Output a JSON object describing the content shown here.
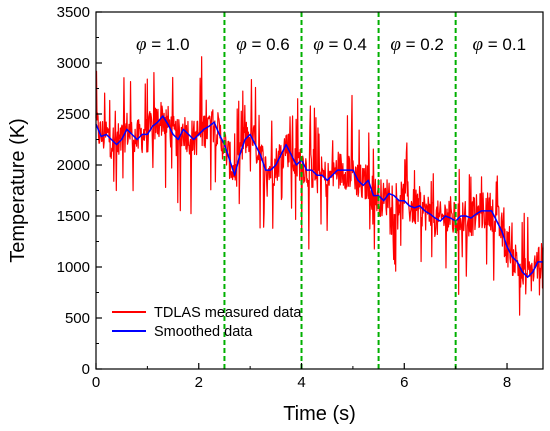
{
  "chart_data": {
    "type": "line",
    "xlabel": "Time (s)",
    "ylabel": "Temperature (K)",
    "xlim": [
      0,
      8.7
    ],
    "ylim": [
      0,
      3500
    ],
    "xticks": [
      "0",
      "2",
      "4",
      "6",
      "8"
    ],
    "yticks": [
      "0",
      "500",
      "1000",
      "1500",
      "2000",
      "2500",
      "3000",
      "3500"
    ],
    "grid": false,
    "legend_position": "bottom-left",
    "vertical_lines_x": [
      2.5,
      4.0,
      5.5,
      7.0
    ],
    "regions": [
      {
        "symbol": "φ",
        "label": "= 1.0",
        "x": 1.3
      },
      {
        "symbol": "φ",
        "label": "= 0.6",
        "x": 3.25
      },
      {
        "symbol": "φ",
        "label": "= 0.4",
        "x": 4.75
      },
      {
        "symbol": "φ",
        "label": "= 0.2",
        "x": 6.25
      },
      {
        "symbol": "φ",
        "label": "= 0.1",
        "x": 7.85
      }
    ],
    "series": [
      {
        "name": "TDLAS measured data",
        "color": "#ff0000",
        "noise_amplitude": 420,
        "x": [
          0,
          0.1,
          0.2,
          0.3,
          0.4,
          0.5,
          0.6,
          0.7,
          0.8,
          0.9,
          1.0,
          1.1,
          1.2,
          1.3,
          1.4,
          1.5,
          1.6,
          1.7,
          1.8,
          1.9,
          2.0,
          2.1,
          2.2,
          2.3,
          2.4,
          2.5,
          2.6,
          2.7,
          2.8,
          2.9,
          3.0,
          3.1,
          3.2,
          3.3,
          3.4,
          3.5,
          3.6,
          3.7,
          3.8,
          3.9,
          4.0,
          4.1,
          4.2,
          4.3,
          4.4,
          4.5,
          4.6,
          4.7,
          4.8,
          4.9,
          5.0,
          5.1,
          5.2,
          5.3,
          5.4,
          5.5,
          5.6,
          5.7,
          5.8,
          5.9,
          6.0,
          6.1,
          6.2,
          6.3,
          6.4,
          6.5,
          6.6,
          6.7,
          6.8,
          6.9,
          7.0,
          7.1,
          7.2,
          7.3,
          7.4,
          7.5,
          7.6,
          7.7,
          7.8,
          7.9,
          8.0,
          8.1,
          8.2,
          8.3,
          8.4,
          8.5,
          8.6,
          8.7
        ],
        "values": [
          2400,
          2280,
          2300,
          2250,
          2200,
          2250,
          2350,
          2300,
          2250,
          2300,
          2300,
          2380,
          2420,
          2480,
          2400,
          2300,
          2250,
          2350,
          2300,
          2250,
          2300,
          2350,
          2380,
          2420,
          2300,
          2200,
          2050,
          1900,
          2100,
          2250,
          2300,
          2200,
          2100,
          1950,
          1950,
          2000,
          2100,
          2200,
          2100,
          2000,
          2050,
          1950,
          1950,
          1900,
          1900,
          1850,
          1900,
          1950,
          1950,
          1950,
          1950,
          1850,
          1800,
          1850,
          1700,
          1700,
          1650,
          1720,
          1700,
          1650,
          1650,
          1600,
          1580,
          1600,
          1550,
          1520,
          1480,
          1450,
          1500,
          1480,
          1450,
          1500,
          1500,
          1480,
          1520,
          1550,
          1550,
          1550,
          1450,
          1350,
          1200,
          1100,
          1050,
          950,
          900,
          950,
          1050,
          1050
        ]
      },
      {
        "name": "Smoothed data",
        "color": "#0000ff",
        "x": [
          0,
          0.1,
          0.2,
          0.3,
          0.4,
          0.5,
          0.6,
          0.7,
          0.8,
          0.9,
          1.0,
          1.1,
          1.2,
          1.3,
          1.4,
          1.5,
          1.6,
          1.7,
          1.8,
          1.9,
          2.0,
          2.1,
          2.2,
          2.3,
          2.4,
          2.5,
          2.6,
          2.7,
          2.8,
          2.9,
          3.0,
          3.1,
          3.2,
          3.3,
          3.4,
          3.5,
          3.6,
          3.7,
          3.8,
          3.9,
          4.0,
          4.1,
          4.2,
          4.3,
          4.4,
          4.5,
          4.6,
          4.7,
          4.8,
          4.9,
          5.0,
          5.1,
          5.2,
          5.3,
          5.4,
          5.5,
          5.6,
          5.7,
          5.8,
          5.9,
          6.0,
          6.1,
          6.2,
          6.3,
          6.4,
          6.5,
          6.6,
          6.7,
          6.8,
          6.9,
          7.0,
          7.1,
          7.2,
          7.3,
          7.4,
          7.5,
          7.6,
          7.7,
          7.8,
          7.9,
          8.0,
          8.1,
          8.2,
          8.3,
          8.4,
          8.5,
          8.6,
          8.7
        ],
        "values": [
          2400,
          2280,
          2300,
          2250,
          2200,
          2250,
          2350,
          2300,
          2250,
          2300,
          2300,
          2380,
          2420,
          2480,
          2400,
          2300,
          2250,
          2350,
          2300,
          2250,
          2300,
          2350,
          2380,
          2420,
          2300,
          2200,
          2050,
          1900,
          2100,
          2250,
          2300,
          2200,
          2100,
          1950,
          1950,
          2000,
          2100,
          2200,
          2100,
          2000,
          2050,
          1950,
          1950,
          1900,
          1900,
          1850,
          1900,
          1950,
          1950,
          1950,
          1950,
          1850,
          1800,
          1850,
          1700,
          1700,
          1650,
          1720,
          1700,
          1650,
          1650,
          1600,
          1580,
          1600,
          1550,
          1520,
          1480,
          1450,
          1500,
          1480,
          1450,
          1500,
          1500,
          1480,
          1520,
          1550,
          1550,
          1550,
          1450,
          1350,
          1200,
          1100,
          1050,
          950,
          900,
          950,
          1050,
          1050
        ]
      }
    ]
  }
}
